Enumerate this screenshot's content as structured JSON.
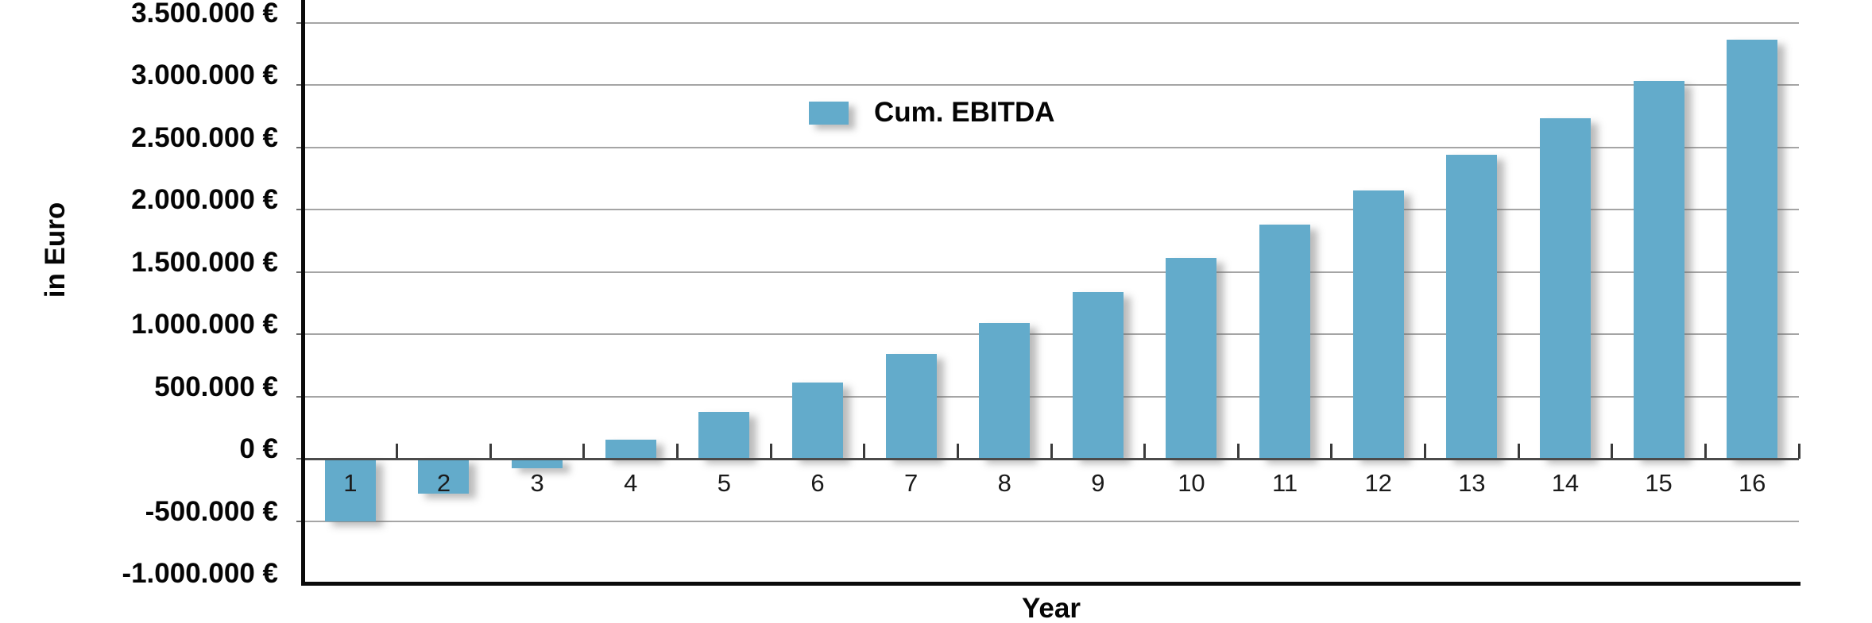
{
  "chart_data": {
    "type": "bar",
    "title": "",
    "legend_label": "Cum. EBITDA",
    "legend_position": "top-center-inside",
    "xlabel": "Year",
    "ylabel": "in Euro",
    "categories": [
      "1",
      "2",
      "3",
      "4",
      "5",
      "6",
      "7",
      "8",
      "9",
      "10",
      "11",
      "12",
      "13",
      "14",
      "15",
      "16"
    ],
    "series": [
      {
        "name": "Cum. EBITDA",
        "values": [
          -500000,
          -280000,
          -75000,
          150000,
          375000,
          610000,
          840000,
          1090000,
          1340000,
          1610000,
          1880000,
          2150000,
          2440000,
          2730000,
          3030000,
          3360000
        ]
      }
    ],
    "ylim": [
      -1000000,
      3500000
    ],
    "ytick_step": 500000,
    "ytick_values": [
      3500000,
      3000000,
      2500000,
      2000000,
      1500000,
      1000000,
      500000,
      0,
      -500000,
      -1000000
    ],
    "ytick_labels": [
      "3.500.000 €",
      "3.000.000 €",
      "2.500.000 €",
      "2.000.000 €",
      "1.500.000 €",
      "1.000.000 €",
      "500.000 €",
      "0 €",
      "-500.000 €",
      "-1.000.000 €"
    ],
    "grid": true,
    "bar_color": "#63ABCB"
  }
}
